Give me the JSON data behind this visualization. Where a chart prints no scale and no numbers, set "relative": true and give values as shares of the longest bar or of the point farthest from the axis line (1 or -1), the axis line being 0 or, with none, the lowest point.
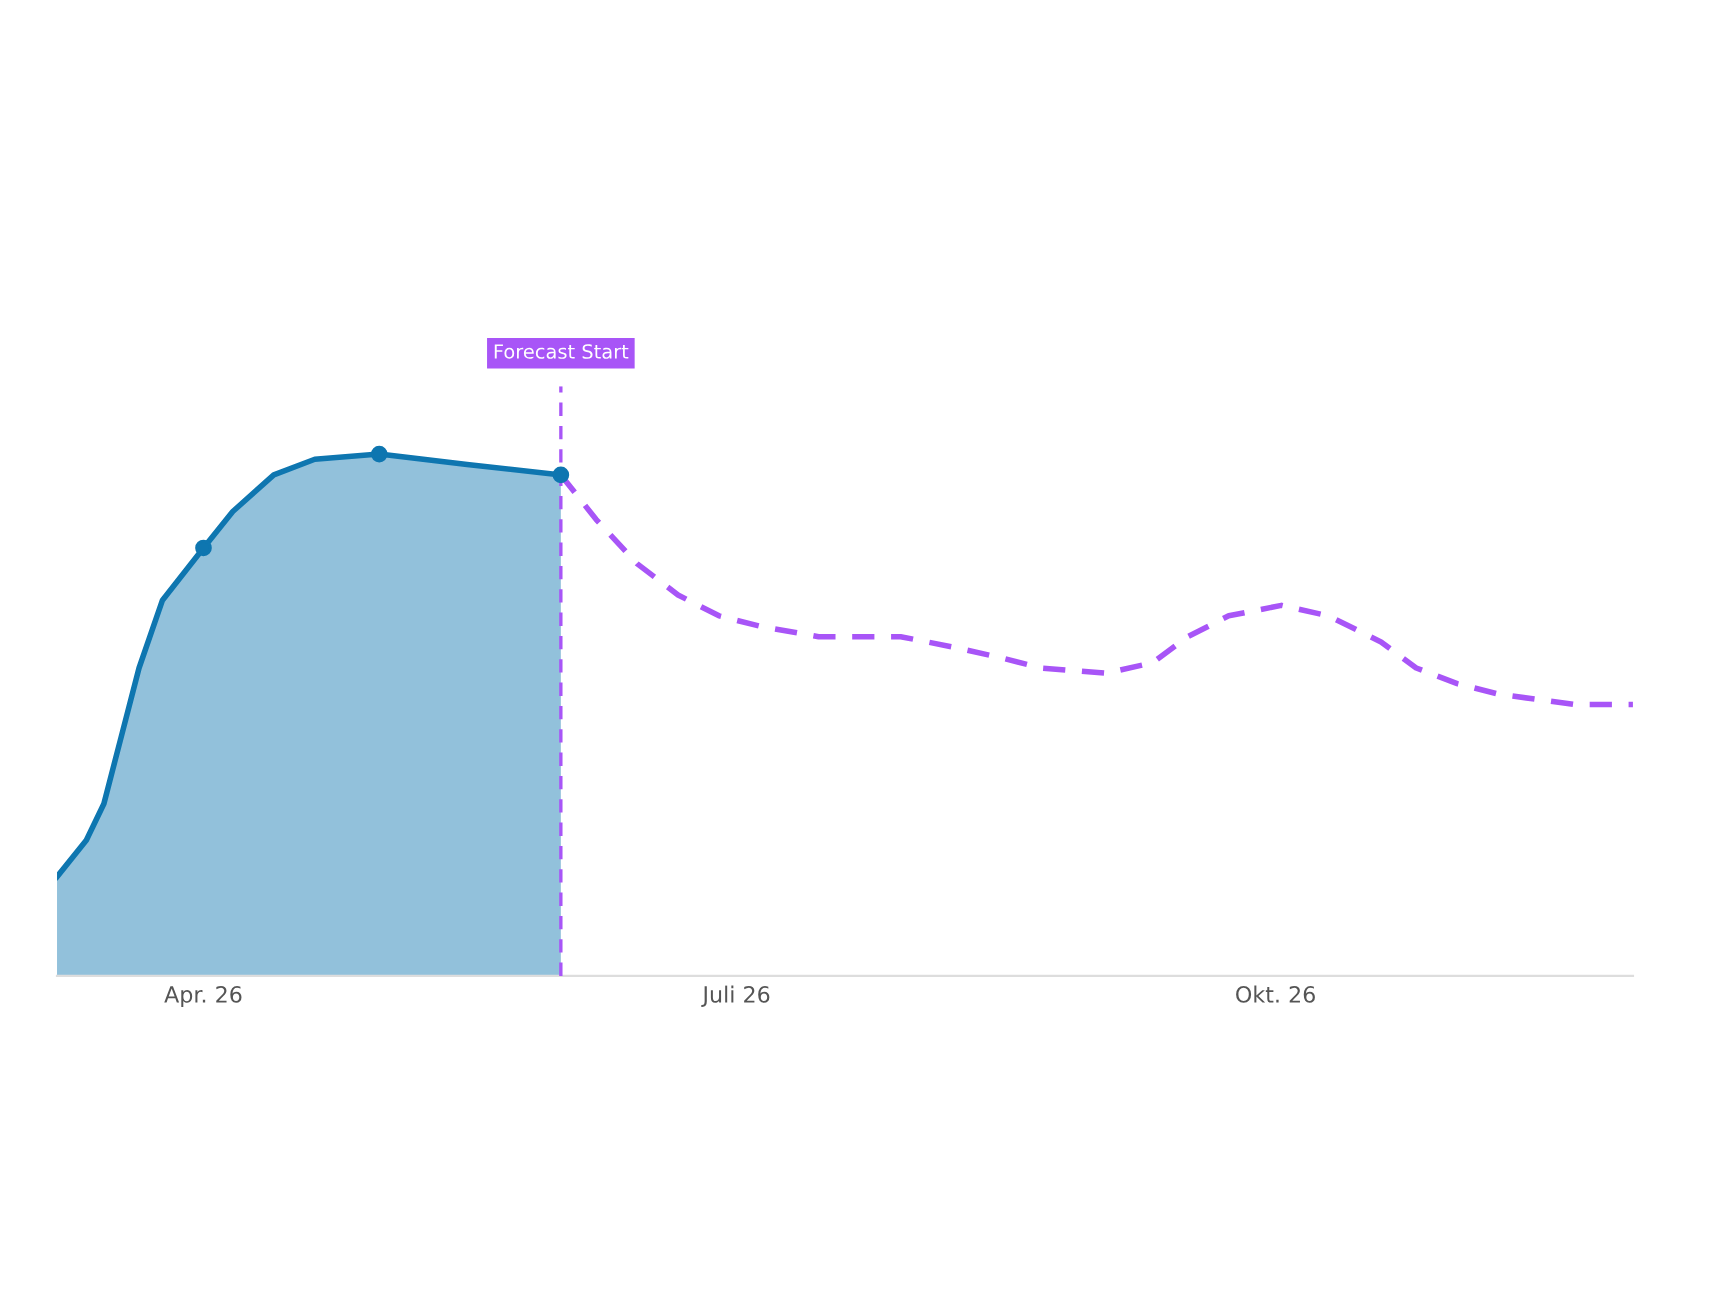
{
  "chart_data": {
    "type": "line",
    "relative": true,
    "xlim": [
      "2026-03-07",
      "2026-12-01"
    ],
    "xticks": [
      {
        "value": "2026-04-01",
        "label": "Apr. 26"
      },
      {
        "value": "2026-07-01",
        "label": "Juli 26"
      },
      {
        "value": "2026-10-01",
        "label": "Okt. 26"
      }
    ],
    "series": [
      {
        "type": "area",
        "color": "#0e76b0",
        "line_style": "solid",
        "x": [
          "2026-03-07",
          "2026-03-12",
          "2026-03-15",
          "2026-03-18",
          "2026-03-21",
          "2026-03-25",
          "2026-04-01",
          "2026-04-06",
          "2026-04-13",
          "2026-04-20",
          "2026-05-01",
          "2026-05-16",
          "2026-06-01"
        ],
        "values": [
          0.19,
          0.26,
          0.33,
          0.46,
          0.59,
          0.72,
          0.82,
          0.89,
          0.96,
          0.99,
          1.0,
          0.98,
          0.96
        ]
      },
      {
        "type": "scatter",
        "color": "#0e76b0",
        "marker": "circle",
        "x": [
          "2026-04-01",
          "2026-05-01",
          "2026-06-01"
        ],
        "values": [
          0.82,
          1.0,
          0.96
        ]
      },
      {
        "color": "#a855f7",
        "line_style": "dashed",
        "x": [
          "2026-06-01",
          "2026-06-07",
          "2026-06-14",
          "2026-06-21",
          "2026-06-28",
          "2026-07-05",
          "2026-07-15",
          "2026-07-29",
          "2026-08-07",
          "2026-08-15",
          "2026-08-22",
          "2026-09-02",
          "2026-09-10",
          "2026-09-16",
          "2026-09-23",
          "2026-10-02",
          "2026-10-10",
          "2026-10-19",
          "2026-10-25",
          "2026-11-01",
          "2026-11-08",
          "2026-11-21",
          "2026-12-01"
        ],
        "values": [
          0.96,
          0.875,
          0.79,
          0.73,
          0.69,
          0.67,
          0.65,
          0.65,
          0.63,
          0.61,
          0.59,
          0.58,
          0.6,
          0.65,
          0.69,
          0.71,
          0.69,
          0.64,
          0.59,
          0.56,
          0.54,
          0.52,
          0.52
        ]
      }
    ],
    "ref_lines": [
      {
        "axis": "x",
        "value": "2026-06-01",
        "label": "Forecast Start",
        "color": "#a855f7",
        "line_style": "dashed"
      }
    ]
  }
}
